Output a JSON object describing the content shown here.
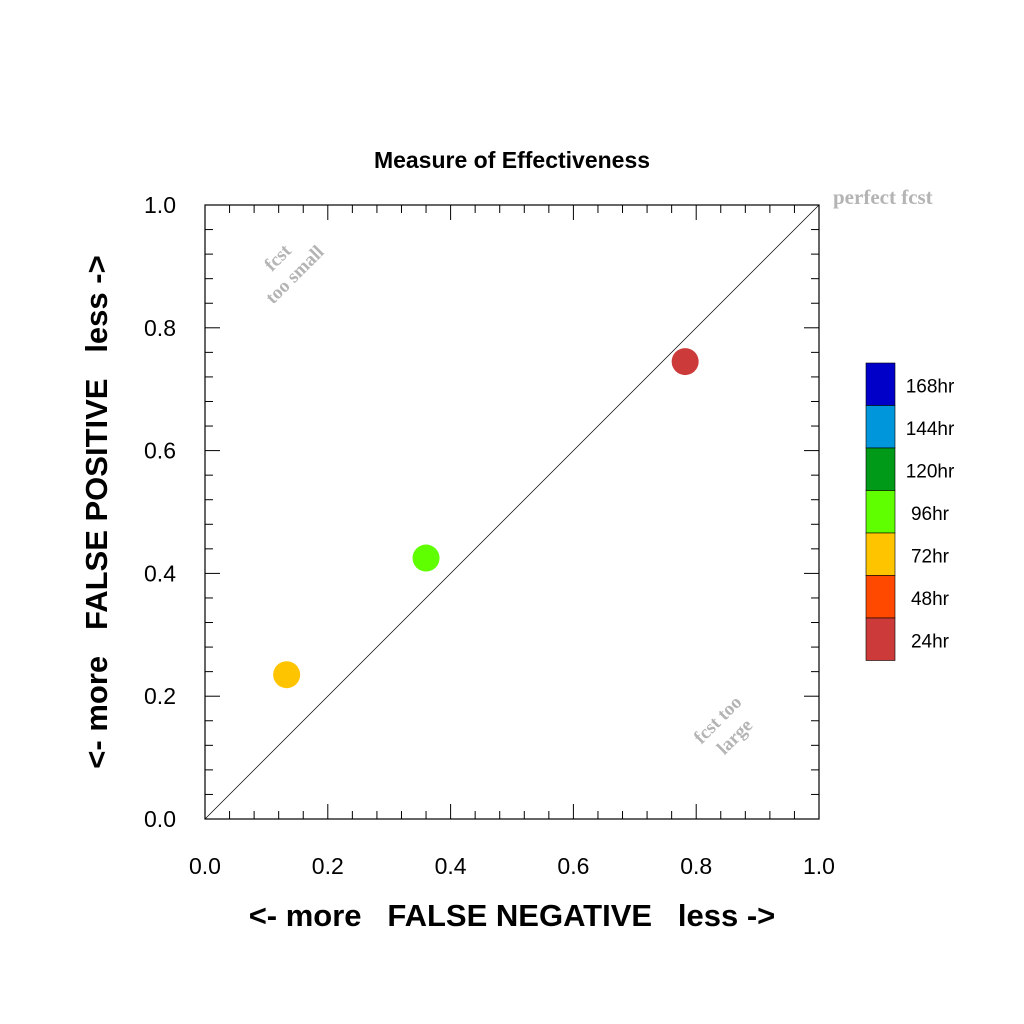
{
  "chart_data": {
    "type": "scatter",
    "title": "Measure of Effectiveness",
    "xlabel": "<- more   FALSE NEGATIVE   less ->",
    "ylabel": "<- more   FALSE POSITIVE   less ->",
    "xlim": [
      0.0,
      1.0
    ],
    "ylim": [
      0.0,
      1.0
    ],
    "x_ticks": [
      "0.0",
      "0.2",
      "0.4",
      "0.6",
      "0.8",
      "1.0"
    ],
    "y_ticks": [
      "0.0",
      "0.2",
      "0.4",
      "0.6",
      "0.8",
      "1.0"
    ],
    "grid": false,
    "legend_position": "right",
    "reference_line": {
      "from": [
        0,
        0
      ],
      "to": [
        1,
        1
      ]
    },
    "annotations": {
      "perfect": "perfect fcst",
      "too_small_1": "fcst",
      "too_small_2": "too small",
      "too_large_1": "fcst too",
      "too_large_2": "large"
    },
    "legend": [
      {
        "label": "168hr",
        "color": "#0000c8"
      },
      {
        "label": "144hr",
        "color": "#0096dc"
      },
      {
        "label": "120hr",
        "color": "#009a18"
      },
      {
        "label": "96hr",
        "color": "#60ff00"
      },
      {
        "label": "72hr",
        "color": "#ffc400"
      },
      {
        "label": "48hr",
        "color": "#ff4800"
      },
      {
        "label": "24hr",
        "color": "#cc3a3a"
      }
    ],
    "points": [
      {
        "series": "72hr",
        "x": 0.133,
        "y": 0.235,
        "color": "#ffc400"
      },
      {
        "series": "96hr",
        "x": 0.36,
        "y": 0.425,
        "color": "#60ff00"
      },
      {
        "series": "24hr",
        "x": 0.782,
        "y": 0.745,
        "color": "#cc3a3a"
      }
    ],
    "colors": {
      "annotation": "#b4b4b4",
      "axis": "#000000"
    }
  }
}
